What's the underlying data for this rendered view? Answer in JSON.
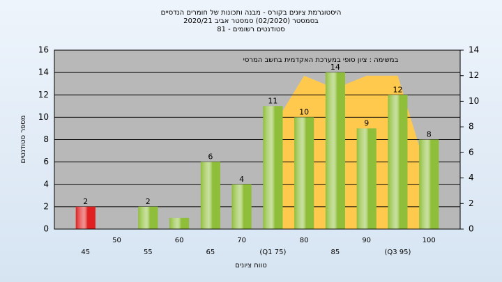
{
  "chart_data": {
    "type": "bar",
    "title": [
      "היסטוגרמת ציונים בקורס - מבנה ותכונות של חומרים הנדסיים",
      "בסמסטר  (02/2020)  סמסטר אביב 2020/21",
      "סטודנטים רשומים - 81"
    ],
    "annotation": "במשימה : ציון סופי במערכת האקדמית בחשב המרסי",
    "x_label": "טווח ציונים",
    "y_label": "מספר סטודנטים",
    "categories": [
      "45",
      "50",
      "55",
      "60",
      "65",
      "70",
      "(Q1 75)",
      "80",
      "85",
      "90",
      "(Q3 95)",
      "100"
    ],
    "values": [
      2,
      null,
      2,
      1,
      6,
      4,
      11,
      10,
      14,
      9,
      12,
      8
    ],
    "value_labels": [
      "2",
      null,
      "2",
      null,
      "6",
      "4",
      "11",
      "10",
      "14",
      "9",
      "12",
      "8"
    ],
    "colors": [
      "#e02020",
      "#8fbf3a",
      "#8fbf3a",
      "#8fbf3a",
      "#8fbf3a",
      "#8fbf3a",
      "#8fbf3a",
      "#8fbf3a",
      "#8fbf3a",
      "#8fbf3a",
      "#8fbf3a",
      "#8fbf3a"
    ],
    "area": {
      "axis": "y2",
      "color": "#ffc94d",
      "values": [
        null,
        null,
        null,
        null,
        null,
        null,
        8,
        12,
        11,
        12,
        12,
        4
      ]
    },
    "ylim": [
      0,
      16
    ],
    "yticks": [
      0,
      2,
      4,
      6,
      8,
      10,
      12,
      14,
      16
    ],
    "y2lim": [
      0,
      14
    ],
    "y2ticks": [
      0,
      2,
      4,
      6,
      8,
      10,
      12,
      14
    ],
    "grid": true
  }
}
